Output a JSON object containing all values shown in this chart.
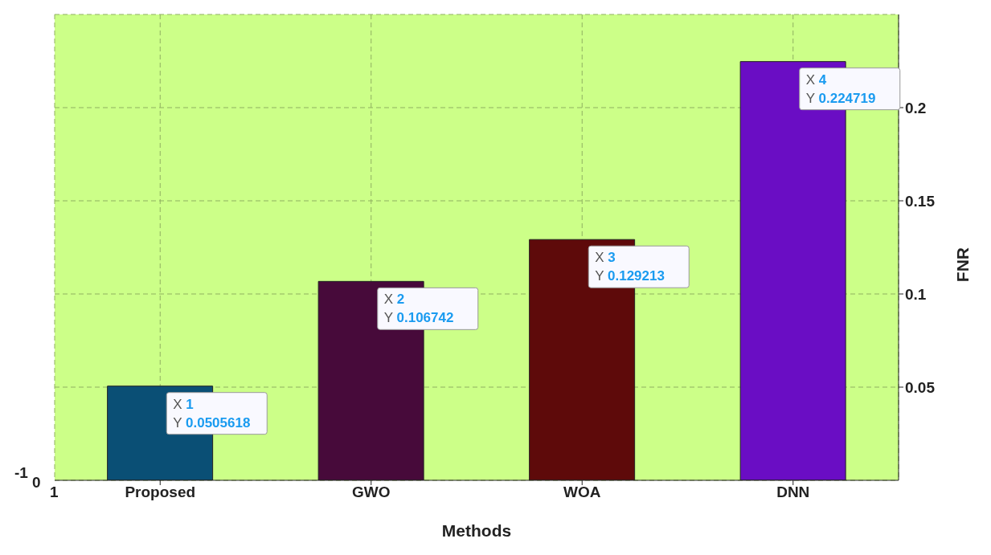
{
  "chart_data": {
    "type": "bar",
    "xlabel": "Methods",
    "ylabel": "FNR",
    "categories": [
      "Proposed",
      "GWO",
      "WOA",
      "DNN"
    ],
    "values": [
      0.0505618,
      0.106742,
      0.129213,
      0.224719
    ],
    "colors": [
      "#0a4f75",
      "#470a3a",
      "#5e0a0a",
      "#6a0dc4"
    ],
    "ylim": [
      0,
      0.25
    ],
    "yticks": [
      0.05,
      0.1,
      0.15,
      0.2
    ],
    "grid": true,
    "annotations": [
      {
        "text": "X 1\nY 0.0505618",
        "x": "Proposed",
        "y": 0.0505618
      },
      {
        "text": "X 2\nY 0.106742",
        "x": "GWO",
        "y": 0.106742
      },
      {
        "text": "X 3\nY 0.129213",
        "x": "WOA",
        "y": 0.129213
      },
      {
        "text": "X 4\nY 0.224719",
        "x": "DNN",
        "y": 0.224719
      },
      "-1",
      "0",
      "1"
    ]
  }
}
